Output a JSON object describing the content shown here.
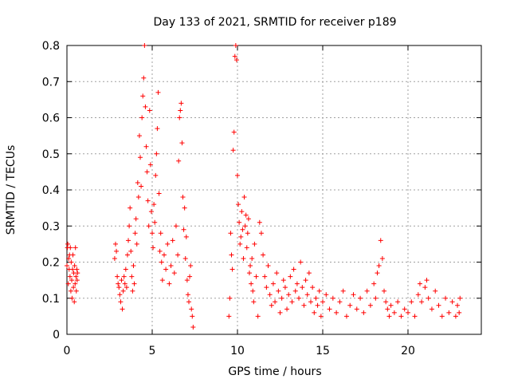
{
  "chart_data": {
    "type": "scatter",
    "title": "Day 133 of 2021, SRMTID for receiver p189",
    "xlabel": "GPS time / hours",
    "ylabel": "SRMTID / TECUs",
    "xlim": [
      0,
      24.3
    ],
    "ylim": [
      0,
      0.8
    ],
    "xticks": [
      0,
      5,
      10,
      15,
      20
    ],
    "yticks": [
      0,
      0.1,
      0.2,
      0.3,
      0.4,
      0.5,
      0.6,
      0.7,
      0.8
    ],
    "grid": true,
    "marker": "+",
    "color": "#ff0000",
    "series": [
      {
        "name": "SRMTID",
        "description": "representative sample of the plotted points",
        "points": [
          [
            0.0,
            0.19
          ],
          [
            0.03,
            0.24
          ],
          [
            0.05,
            0.25
          ],
          [
            0.08,
            0.14
          ],
          [
            0.1,
            0.21
          ],
          [
            0.13,
            0.18
          ],
          [
            0.15,
            0.22
          ],
          [
            0.18,
            0.16
          ],
          [
            0.2,
            0.24
          ],
          [
            0.23,
            0.12
          ],
          [
            0.25,
            0.2
          ],
          [
            0.28,
            0.15
          ],
          [
            0.3,
            0.1
          ],
          [
            0.33,
            0.18
          ],
          [
            0.35,
            0.22
          ],
          [
            0.38,
            0.13
          ],
          [
            0.4,
            0.17
          ],
          [
            0.43,
            0.09
          ],
          [
            0.45,
            0.19
          ],
          [
            0.48,
            0.14
          ],
          [
            0.5,
            0.24
          ],
          [
            0.53,
            0.16
          ],
          [
            0.55,
            0.12
          ],
          [
            0.58,
            0.18
          ],
          [
            0.6,
            0.15
          ],
          [
            0.62,
            0.17
          ],
          [
            2.8,
            0.21
          ],
          [
            2.85,
            0.25
          ],
          [
            2.9,
            0.23
          ],
          [
            2.95,
            0.16
          ],
          [
            3.0,
            0.14
          ],
          [
            3.05,
            0.13
          ],
          [
            3.1,
            0.11
          ],
          [
            3.15,
            0.09
          ],
          [
            3.2,
            0.15
          ],
          [
            3.25,
            0.07
          ],
          [
            3.3,
            0.12
          ],
          [
            3.35,
            0.16
          ],
          [
            3.4,
            0.14
          ],
          [
            3.45,
            0.18
          ],
          [
            3.5,
            0.13
          ],
          [
            3.55,
            0.22
          ],
          [
            3.6,
            0.26
          ],
          [
            3.65,
            0.3
          ],
          [
            3.7,
            0.35
          ],
          [
            3.75,
            0.23
          ],
          [
            3.8,
            0.16
          ],
          [
            3.85,
            0.12
          ],
          [
            3.9,
            0.19
          ],
          [
            3.95,
            0.14
          ],
          [
            4.0,
            0.28
          ],
          [
            4.05,
            0.32
          ],
          [
            4.1,
            0.25
          ],
          [
            4.15,
            0.42
          ],
          [
            4.2,
            0.38
          ],
          [
            4.25,
            0.55
          ],
          [
            4.3,
            0.49
          ],
          [
            4.35,
            0.41
          ],
          [
            4.4,
            0.6
          ],
          [
            4.45,
            0.66
          ],
          [
            4.5,
            0.71
          ],
          [
            4.55,
            0.8
          ],
          [
            4.6,
            0.63
          ],
          [
            4.65,
            0.52
          ],
          [
            4.7,
            0.45
          ],
          [
            4.75,
            0.37
          ],
          [
            4.8,
            0.3
          ],
          [
            4.85,
            0.62
          ],
          [
            4.9,
            0.47
          ],
          [
            4.95,
            0.34
          ],
          [
            5.0,
            0.28
          ],
          [
            5.05,
            0.24
          ],
          [
            5.1,
            0.36
          ],
          [
            5.15,
            0.31
          ],
          [
            5.2,
            0.44
          ],
          [
            5.25,
            0.5
          ],
          [
            5.3,
            0.57
          ],
          [
            5.35,
            0.67
          ],
          [
            5.4,
            0.39
          ],
          [
            5.45,
            0.23
          ],
          [
            5.5,
            0.28
          ],
          [
            5.55,
            0.2
          ],
          [
            5.6,
            0.15
          ],
          [
            5.7,
            0.22
          ],
          [
            5.8,
            0.18
          ],
          [
            5.9,
            0.25
          ],
          [
            6.0,
            0.14
          ],
          [
            6.1,
            0.19
          ],
          [
            6.2,
            0.26
          ],
          [
            6.3,
            0.17
          ],
          [
            6.4,
            0.3
          ],
          [
            6.5,
            0.22
          ],
          [
            6.55,
            0.48
          ],
          [
            6.6,
            0.6
          ],
          [
            6.65,
            0.62
          ],
          [
            6.7,
            0.64
          ],
          [
            6.75,
            0.53
          ],
          [
            6.8,
            0.38
          ],
          [
            6.85,
            0.29
          ],
          [
            6.9,
            0.35
          ],
          [
            6.95,
            0.21
          ],
          [
            7.0,
            0.27
          ],
          [
            7.05,
            0.15
          ],
          [
            7.1,
            0.11
          ],
          [
            7.15,
            0.09
          ],
          [
            7.2,
            0.16
          ],
          [
            7.25,
            0.19
          ],
          [
            7.3,
            0.07
          ],
          [
            7.35,
            0.05
          ],
          [
            7.4,
            0.02
          ],
          [
            9.5,
            0.05
          ],
          [
            9.55,
            0.1
          ],
          [
            9.6,
            0.28
          ],
          [
            9.65,
            0.22
          ],
          [
            9.7,
            0.18
          ],
          [
            9.75,
            0.51
          ],
          [
            9.8,
            0.56
          ],
          [
            9.85,
            0.77
          ],
          [
            9.9,
            0.8
          ],
          [
            9.95,
            0.76
          ],
          [
            10.0,
            0.44
          ],
          [
            10.05,
            0.36
          ],
          [
            10.1,
            0.31
          ],
          [
            10.15,
            0.25
          ],
          [
            10.2,
            0.27
          ],
          [
            10.25,
            0.34
          ],
          [
            10.3,
            0.29
          ],
          [
            10.35,
            0.21
          ],
          [
            10.4,
            0.38
          ],
          [
            10.45,
            0.3
          ],
          [
            10.5,
            0.33
          ],
          [
            10.55,
            0.24
          ],
          [
            10.6,
            0.28
          ],
          [
            10.65,
            0.32
          ],
          [
            10.7,
            0.17
          ],
          [
            10.75,
            0.19
          ],
          [
            10.8,
            0.14
          ],
          [
            10.85,
            0.21
          ],
          [
            10.9,
            0.12
          ],
          [
            10.95,
            0.09
          ],
          [
            11.0,
            0.25
          ],
          [
            11.1,
            0.16
          ],
          [
            11.2,
            0.05
          ],
          [
            11.3,
            0.31
          ],
          [
            11.4,
            0.28
          ],
          [
            11.5,
            0.22
          ],
          [
            11.6,
            0.16
          ],
          [
            11.7,
            0.13
          ],
          [
            11.8,
            0.19
          ],
          [
            11.9,
            0.11
          ],
          [
            12.0,
            0.08
          ],
          [
            12.1,
            0.14
          ],
          [
            12.2,
            0.09
          ],
          [
            12.3,
            0.17
          ],
          [
            12.4,
            0.12
          ],
          [
            12.5,
            0.06
          ],
          [
            12.6,
            0.1
          ],
          [
            12.7,
            0.15
          ],
          [
            12.8,
            0.13
          ],
          [
            12.9,
            0.07
          ],
          [
            13.0,
            0.11
          ],
          [
            13.1,
            0.16
          ],
          [
            13.2,
            0.09
          ],
          [
            13.3,
            0.18
          ],
          [
            13.4,
            0.12
          ],
          [
            13.5,
            0.14
          ],
          [
            13.6,
            0.1
          ],
          [
            13.7,
            0.2
          ],
          [
            13.8,
            0.13
          ],
          [
            13.9,
            0.08
          ],
          [
            14.0,
            0.15
          ],
          [
            14.1,
            0.11
          ],
          [
            14.2,
            0.17
          ],
          [
            14.3,
            0.09
          ],
          [
            14.4,
            0.13
          ],
          [
            14.5,
            0.06
          ],
          [
            14.6,
            0.1
          ],
          [
            14.7,
            0.08
          ],
          [
            14.8,
            0.12
          ],
          [
            14.9,
            0.05
          ],
          [
            15.0,
            0.09
          ],
          [
            15.2,
            0.11
          ],
          [
            15.4,
            0.07
          ],
          [
            15.6,
            0.1
          ],
          [
            15.8,
            0.06
          ],
          [
            16.0,
            0.09
          ],
          [
            16.2,
            0.12
          ],
          [
            16.4,
            0.05
          ],
          [
            16.6,
            0.08
          ],
          [
            16.8,
            0.11
          ],
          [
            17.0,
            0.07
          ],
          [
            17.2,
            0.1
          ],
          [
            17.4,
            0.06
          ],
          [
            17.6,
            0.12
          ],
          [
            17.8,
            0.08
          ],
          [
            18.0,
            0.14
          ],
          [
            18.1,
            0.1
          ],
          [
            18.2,
            0.17
          ],
          [
            18.3,
            0.19
          ],
          [
            18.4,
            0.26
          ],
          [
            18.5,
            0.21
          ],
          [
            18.6,
            0.12
          ],
          [
            18.7,
            0.09
          ],
          [
            18.8,
            0.07
          ],
          [
            18.9,
            0.05
          ],
          [
            19.0,
            0.08
          ],
          [
            19.2,
            0.06
          ],
          [
            19.4,
            0.09
          ],
          [
            19.6,
            0.05
          ],
          [
            19.8,
            0.07
          ],
          [
            20.0,
            0.06
          ],
          [
            20.2,
            0.09
          ],
          [
            20.4,
            0.05
          ],
          [
            20.6,
            0.11
          ],
          [
            20.7,
            0.14
          ],
          [
            20.8,
            0.09
          ],
          [
            21.0,
            0.13
          ],
          [
            21.1,
            0.15
          ],
          [
            21.2,
            0.1
          ],
          [
            21.4,
            0.07
          ],
          [
            21.6,
            0.12
          ],
          [
            21.8,
            0.08
          ],
          [
            22.0,
            0.05
          ],
          [
            22.2,
            0.1
          ],
          [
            22.4,
            0.06
          ],
          [
            22.6,
            0.09
          ],
          [
            22.8,
            0.05
          ],
          [
            22.9,
            0.08
          ],
          [
            23.0,
            0.06
          ],
          [
            23.05,
            0.1
          ]
        ]
      }
    ]
  }
}
